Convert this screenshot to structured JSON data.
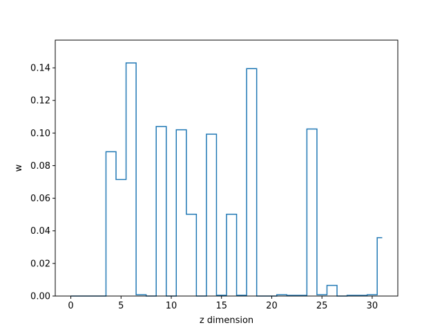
{
  "chart_data": {
    "type": "line",
    "drawstyle": "steps-mid",
    "title": "",
    "xlabel": "z dimension",
    "ylabel": "w",
    "xlim": [
      -1.55,
      32.55
    ],
    "ylim": [
      0,
      0.157
    ],
    "grid": false,
    "line_color": "#1f77b4",
    "x": [
      0,
      1,
      2,
      3,
      4,
      5,
      6,
      7,
      8,
      9,
      10,
      11,
      12,
      13,
      14,
      15,
      16,
      17,
      18,
      19,
      20,
      21,
      22,
      23,
      24,
      25,
      26,
      27,
      28,
      29,
      30,
      31
    ],
    "series": [
      {
        "values": [
          0.0,
          0.0,
          0.0,
          0.0,
          0.0885,
          0.0715,
          0.143,
          0.0008,
          0.0,
          0.104,
          0.0,
          0.102,
          0.0502,
          0.0,
          0.0993,
          0.0005,
          0.0502,
          0.0005,
          0.1395,
          0.0,
          0.0,
          0.0008,
          0.0004,
          0.0004,
          0.1025,
          0.0008,
          0.0065,
          0.0,
          0.0004,
          0.0004,
          0.0008,
          0.0358
        ]
      }
    ],
    "xticks": [
      0,
      5,
      10,
      15,
      20,
      25,
      30
    ],
    "xtick_labels": [
      "0",
      "5",
      "10",
      "15",
      "20",
      "25",
      "30"
    ],
    "yticks": [
      0.0,
      0.02,
      0.04,
      0.06,
      0.08,
      0.1,
      0.12,
      0.14
    ],
    "ytick_labels": [
      "0.00",
      "0.02",
      "0.04",
      "0.06",
      "0.08",
      "0.10",
      "0.12",
      "0.14"
    ]
  }
}
